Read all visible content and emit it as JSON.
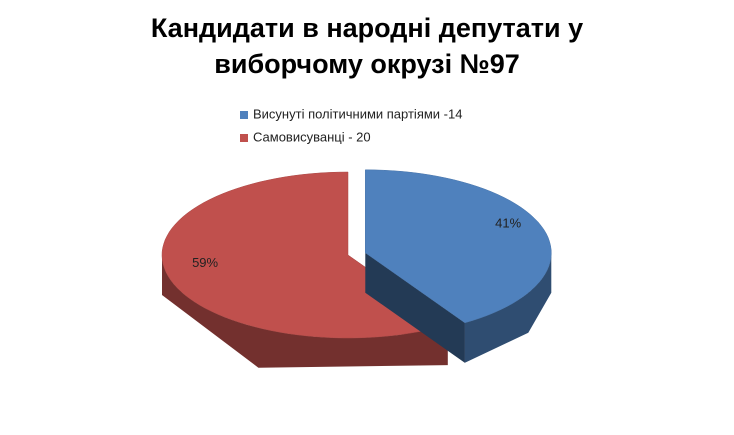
{
  "chart_data": {
    "type": "pie3d",
    "title": "Кандидати в народні депутати у виборчому окрузі №97",
    "categories": [
      "Висунуті політичними партіями -14",
      "Самовисуванці - 20"
    ],
    "values": [
      41,
      59
    ],
    "value_labels": [
      "41%",
      "59%"
    ],
    "colors": [
      "#4f81bd",
      "#c0504d"
    ],
    "legend": "top"
  }
}
